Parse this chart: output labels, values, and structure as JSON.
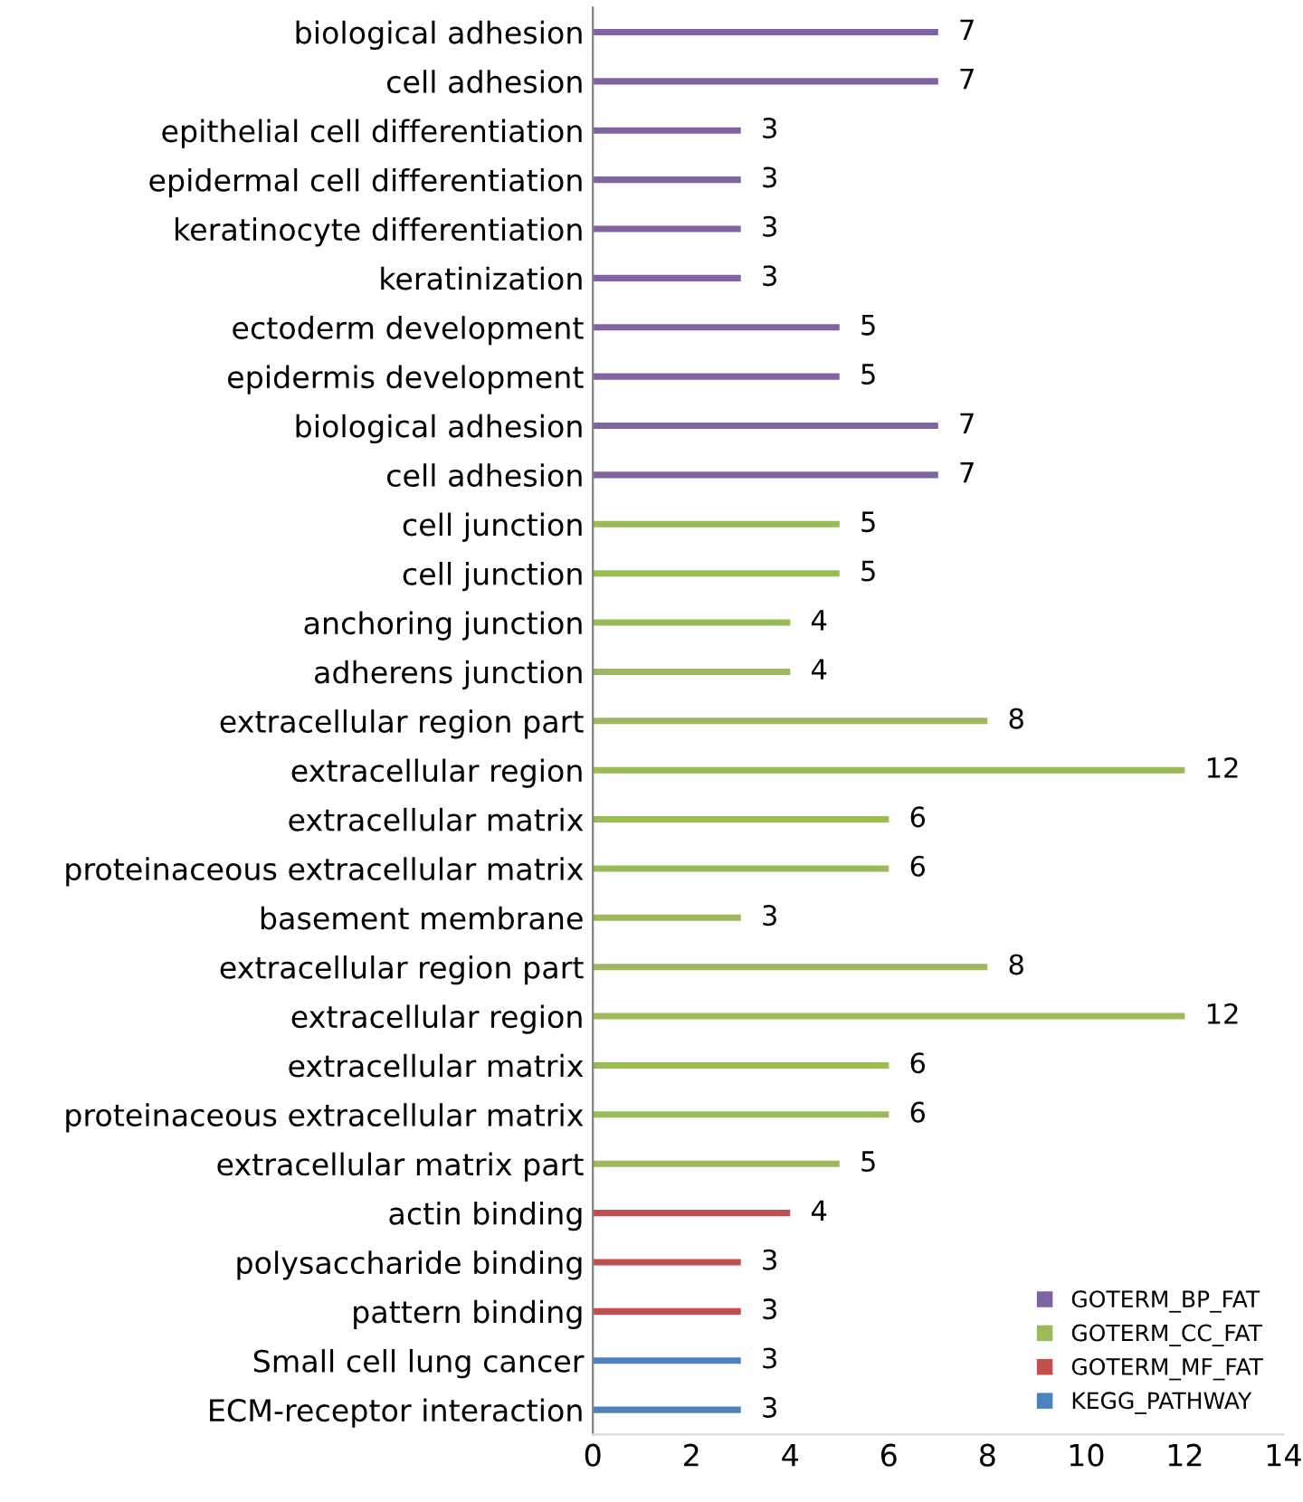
{
  "chart_data": {
    "type": "bar",
    "orientation": "horizontal",
    "categories": [
      "biological adhesion",
      "cell adhesion",
      "epithelial cell differentiation",
      "epidermal cell differentiation",
      "keratinocyte differentiation",
      "keratinization",
      "ectoderm development",
      "epidermis development",
      "biological adhesion",
      "cell adhesion",
      "cell junction",
      "cell junction",
      "anchoring junction",
      "adherens junction",
      "extracellular region part",
      "extracellular region",
      "extracellular matrix",
      "proteinaceous extracellular matrix",
      "basement membrane",
      "extracellular region part",
      "extracellular region",
      "extracellular matrix",
      "proteinaceous extracellular matrix",
      "extracellular matrix part",
      "actin binding",
      "polysaccharide binding",
      "pattern binding",
      "Small cell lung cancer",
      "ECM-receptor interaction"
    ],
    "series": [
      {
        "name": "GOTERM_BP_FAT",
        "color": "#8064a2",
        "values": [
          7,
          7,
          3,
          3,
          3,
          3,
          5,
          5,
          7,
          7,
          null,
          null,
          null,
          null,
          null,
          null,
          null,
          null,
          null,
          null,
          null,
          null,
          null,
          null,
          null,
          null,
          null,
          null,
          null
        ]
      },
      {
        "name": "GOTERM_CC_FAT",
        "color": "#9bbb59",
        "values": [
          null,
          null,
          null,
          null,
          null,
          null,
          null,
          null,
          null,
          null,
          5,
          5,
          4,
          4,
          8,
          12,
          6,
          6,
          3,
          8,
          12,
          6,
          6,
          5,
          null,
          null,
          null,
          null,
          null
        ]
      },
      {
        "name": "GOTERM_MF_FAT",
        "color": "#c0504d",
        "values": [
          null,
          null,
          null,
          null,
          null,
          null,
          null,
          null,
          null,
          null,
          null,
          null,
          null,
          null,
          null,
          null,
          null,
          null,
          null,
          null,
          null,
          null,
          null,
          null,
          4,
          3,
          3,
          null,
          null
        ]
      },
      {
        "name": "KEGG_PATHWAY",
        "color": "#4f81bd",
        "values": [
          null,
          null,
          null,
          null,
          null,
          null,
          null,
          null,
          null,
          null,
          null,
          null,
          null,
          null,
          null,
          null,
          null,
          null,
          null,
          null,
          null,
          null,
          null,
          null,
          null,
          null,
          null,
          3,
          3
        ]
      }
    ],
    "xlim": [
      0,
      14
    ],
    "xticks": [
      0,
      2,
      4,
      6,
      8,
      10,
      12,
      14
    ],
    "data_labels": true,
    "grid": false,
    "legend": "bottom right"
  }
}
